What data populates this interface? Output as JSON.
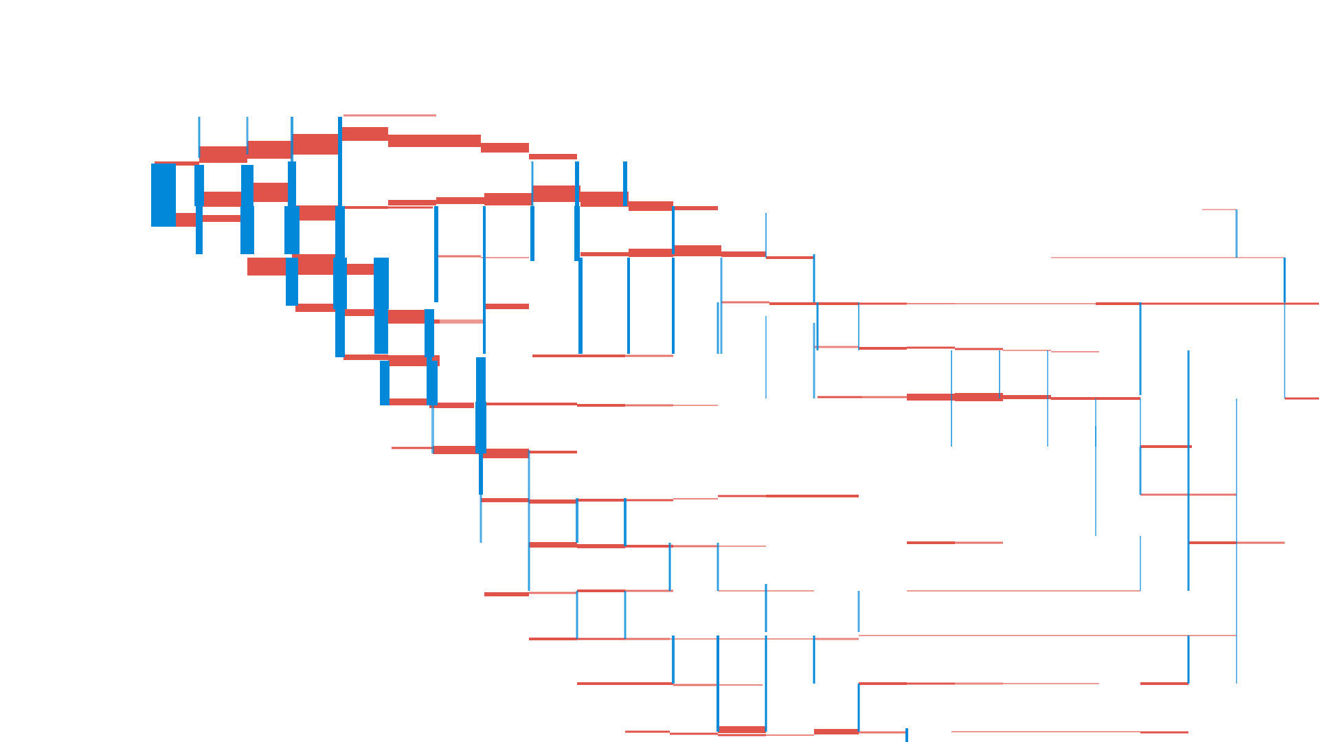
{
  "colors": {
    "background": "#ffffff",
    "horizontal_edge": "#e0534a",
    "vertical_edge": "#0288d8"
  },
  "diagram": {
    "kind": "grid-lattice",
    "description": "",
    "horizontal_color_key": "horizontal_edge",
    "vertical_color_key": "vertical_edge"
  }
}
